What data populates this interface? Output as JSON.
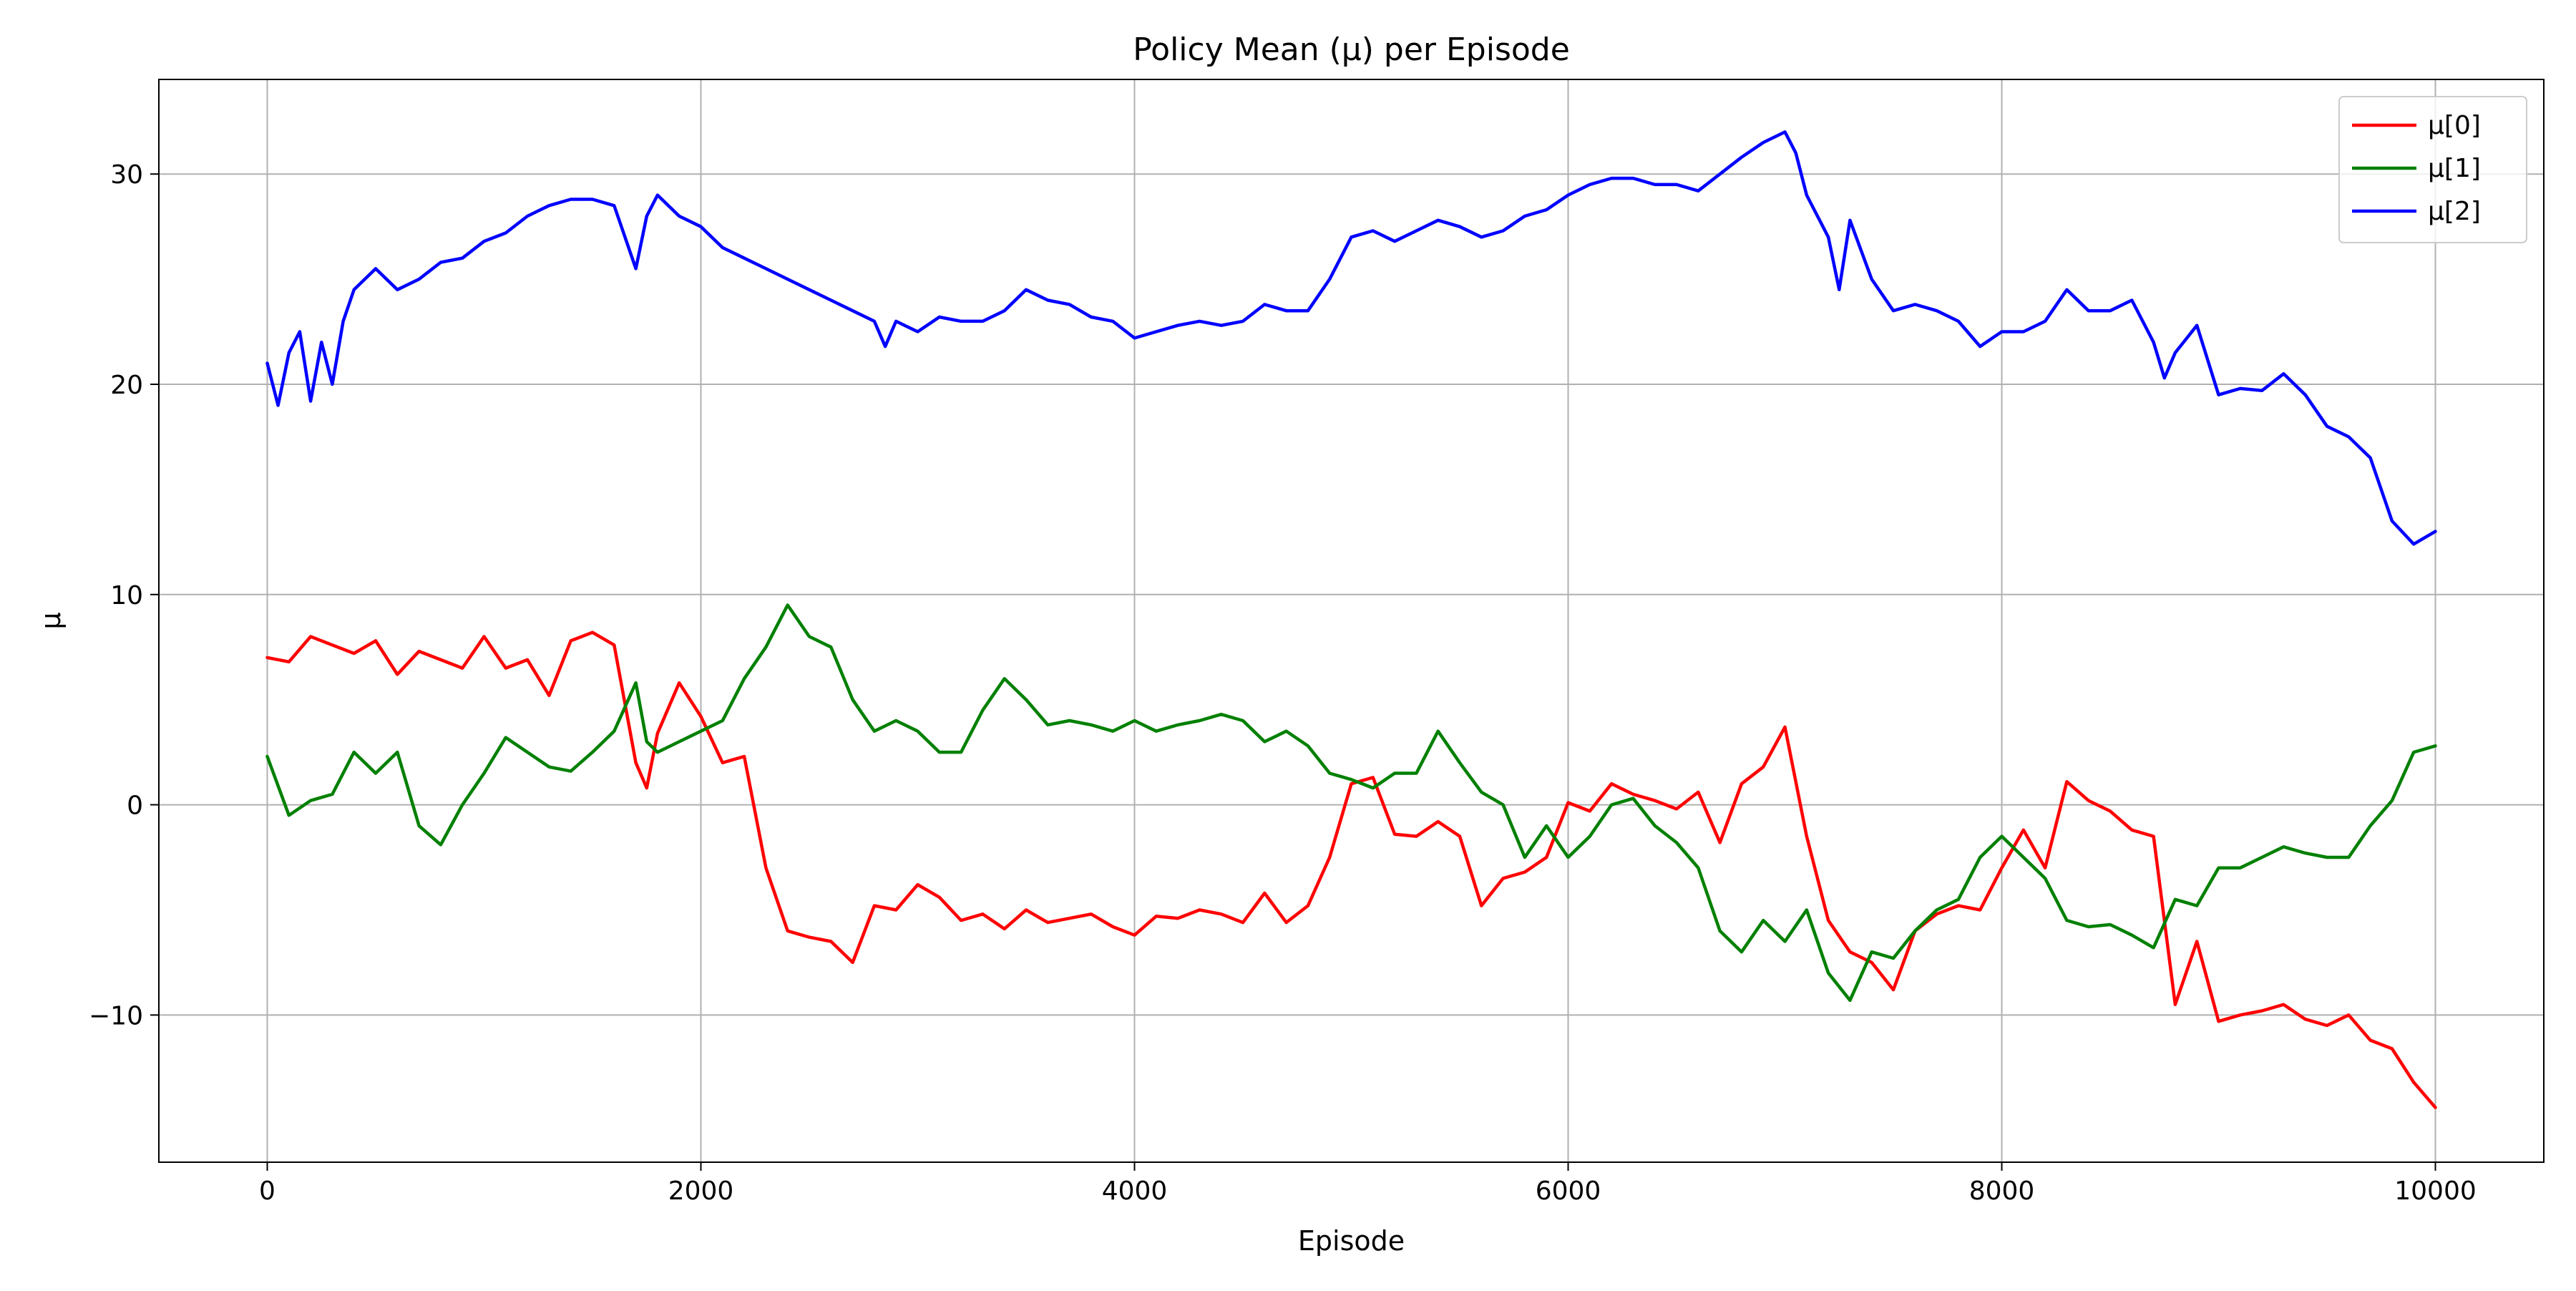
{
  "chart_data": {
    "type": "line",
    "title": "Policy Mean (μ) per Episode",
    "xlabel": "Episode",
    "ylabel": "μ",
    "xlim": [
      -500,
      10500
    ],
    "ylim": [
      -17,
      34.5
    ],
    "xticks": [
      0,
      2000,
      4000,
      6000,
      8000,
      10000
    ],
    "yticks": [
      -10,
      0,
      10,
      20,
      30
    ],
    "xtick_labels": [
      "0",
      "2000",
      "4000",
      "6000",
      "8000",
      "10000"
    ],
    "ytick_labels": [
      "−10",
      "0",
      "10",
      "20",
      "30"
    ],
    "grid": true,
    "legend_position": "top-right",
    "series": [
      {
        "name": "μ[0]",
        "color": "#ff0000",
        "x": [
          0,
          100,
          200,
          300,
          400,
          500,
          600,
          700,
          800,
          900,
          1000,
          1100,
          1200,
          1300,
          1400,
          1500,
          1600,
          1700,
          1750,
          1800,
          1900,
          2000,
          2100,
          2200,
          2300,
          2400,
          2500,
          2600,
          2700,
          2800,
          2900,
          3000,
          3100,
          3200,
          3300,
          3400,
          3500,
          3600,
          3700,
          3800,
          3900,
          4000,
          4100,
          4200,
          4300,
          4400,
          4500,
          4600,
          4700,
          4800,
          4900,
          5000,
          5100,
          5200,
          5300,
          5400,
          5500,
          5600,
          5700,
          5800,
          5900,
          6000,
          6100,
          6200,
          6300,
          6400,
          6500,
          6600,
          6700,
          6800,
          6900,
          7000,
          7100,
          7200,
          7300,
          7400,
          7500,
          7600,
          7700,
          7800,
          7900,
          8000,
          8100,
          8200,
          8300,
          8400,
          8500,
          8600,
          8700,
          8800,
          8900,
          9000,
          9100,
          9200,
          9300,
          9400,
          9500,
          9600,
          9700,
          9800,
          9900,
          10000
        ],
        "y": [
          7.0,
          6.8,
          8.0,
          7.6,
          7.2,
          7.8,
          6.2,
          7.3,
          6.9,
          6.5,
          8.0,
          6.5,
          6.9,
          5.2,
          7.8,
          8.2,
          7.6,
          2.0,
          0.8,
          3.4,
          5.8,
          4.2,
          2.0,
          2.3,
          -3.0,
          -6.0,
          -6.3,
          -6.5,
          -7.5,
          -4.8,
          -5.0,
          -3.8,
          -4.4,
          -5.5,
          -5.2,
          -5.9,
          -5.0,
          -5.6,
          -5.4,
          -5.2,
          -5.8,
          -6.2,
          -5.3,
          -5.4,
          -5.0,
          -5.2,
          -5.6,
          -4.2,
          -5.6,
          -4.8,
          -2.5,
          1.0,
          1.3,
          -1.4,
          -1.5,
          -0.8,
          -1.5,
          -4.8,
          -3.5,
          -3.2,
          -2.5,
          0.1,
          -0.3,
          1.0,
          0.5,
          0.2,
          -0.2,
          0.6,
          -1.8,
          1.0,
          1.8,
          3.7,
          -1.5,
          -5.5,
          -7.0,
          -7.5,
          -8.8,
          -6.0,
          -5.2,
          -4.8,
          -5.0,
          -3.0,
          -1.2,
          -3.0,
          1.1,
          0.2,
          -0.3,
          -1.2,
          -1.5,
          -9.5,
          -6.5,
          -10.3,
          -10.0,
          -9.8,
          -9.5,
          -10.2,
          -10.5,
          -10.0,
          -11.2,
          -11.6,
          -13.2,
          -14.4
        ]
      },
      {
        "name": "μ[1]",
        "color": "#008000",
        "x": [
          0,
          100,
          200,
          300,
          400,
          500,
          600,
          700,
          800,
          900,
          1000,
          1100,
          1200,
          1300,
          1400,
          1500,
          1600,
          1700,
          1750,
          1800,
          1900,
          2000,
          2100,
          2200,
          2300,
          2400,
          2500,
          2600,
          2700,
          2800,
          2900,
          3000,
          3100,
          3200,
          3300,
          3400,
          3500,
          3600,
          3700,
          3800,
          3900,
          4000,
          4100,
          4200,
          4300,
          4400,
          4500,
          4600,
          4700,
          4800,
          4900,
          5000,
          5100,
          5200,
          5300,
          5400,
          5500,
          5600,
          5700,
          5800,
          5900,
          6000,
          6100,
          6200,
          6300,
          6400,
          6500,
          6600,
          6700,
          6800,
          6900,
          7000,
          7100,
          7200,
          7300,
          7400,
          7500,
          7600,
          7700,
          7800,
          7900,
          8000,
          8100,
          8200,
          8300,
          8400,
          8500,
          8600,
          8700,
          8800,
          8900,
          9000,
          9100,
          9200,
          9300,
          9400,
          9500,
          9600,
          9700,
          9800,
          9900,
          10000
        ],
        "y": [
          2.3,
          -0.5,
          0.2,
          0.5,
          2.5,
          1.5,
          2.5,
          -1.0,
          -1.9,
          0.0,
          1.5,
          3.2,
          2.5,
          1.8,
          1.6,
          2.5,
          3.5,
          5.8,
          3.0,
          2.5,
          3.0,
          3.5,
          4.0,
          6.0,
          7.5,
          9.5,
          8.0,
          7.5,
          5.0,
          3.5,
          4.0,
          3.5,
          2.5,
          2.5,
          4.5,
          6.0,
          5.0,
          3.8,
          4.0,
          3.8,
          3.5,
          4.0,
          3.5,
          3.8,
          4.0,
          4.3,
          4.0,
          3.0,
          3.5,
          2.8,
          1.5,
          1.2,
          0.8,
          1.5,
          1.5,
          3.5,
          2.0,
          0.6,
          0.0,
          -2.5,
          -1.0,
          -2.5,
          -1.5,
          0.0,
          0.3,
          -1.0,
          -1.8,
          -3.0,
          -6.0,
          -7.0,
          -5.5,
          -6.5,
          -5.0,
          -8.0,
          -9.3,
          -7.0,
          -7.3,
          -6.0,
          -5.0,
          -4.5,
          -2.5,
          -1.5,
          -2.5,
          -3.5,
          -5.5,
          -5.8,
          -5.7,
          -6.2,
          -6.8,
          -4.5,
          -4.8,
          -3.0,
          -3.0,
          -2.5,
          -2.0,
          -2.3,
          -2.5,
          -2.5,
          -1.0,
          0.2,
          2.5,
          2.8
        ]
      },
      {
        "name": "μ[2]",
        "color": "#0000ff",
        "x": [
          0,
          50,
          100,
          150,
          200,
          250,
          300,
          350,
          400,
          500,
          600,
          700,
          800,
          900,
          1000,
          1100,
          1200,
          1300,
          1400,
          1500,
          1600,
          1700,
          1750,
          1800,
          1900,
          2000,
          2100,
          2200,
          2300,
          2400,
          2500,
          2600,
          2700,
          2800,
          2850,
          2900,
          3000,
          3100,
          3200,
          3300,
          3400,
          3500,
          3600,
          3700,
          3800,
          3900,
          4000,
          4100,
          4200,
          4300,
          4400,
          4500,
          4600,
          4700,
          4800,
          4900,
          5000,
          5100,
          5200,
          5300,
          5400,
          5500,
          5600,
          5700,
          5800,
          5900,
          6000,
          6100,
          6200,
          6300,
          6400,
          6500,
          6600,
          6700,
          6800,
          6900,
          7000,
          7050,
          7100,
          7200,
          7250,
          7300,
          7400,
          7500,
          7600,
          7700,
          7800,
          7900,
          8000,
          8100,
          8200,
          8300,
          8400,
          8500,
          8600,
          8700,
          8750,
          8800,
          8900,
          9000,
          9100,
          9200,
          9300,
          9400,
          9500,
          9600,
          9700,
          9800,
          9900,
          10000
        ],
        "y": [
          21.0,
          19.0,
          21.5,
          22.5,
          19.2,
          22.0,
          20.0,
          23.0,
          24.5,
          25.5,
          24.5,
          25.0,
          25.8,
          26.0,
          26.8,
          27.2,
          28.0,
          28.5,
          28.8,
          28.8,
          28.5,
          25.5,
          28.0,
          29.0,
          28.0,
          27.5,
          26.5,
          26.0,
          25.5,
          25.0,
          24.5,
          24.0,
          23.5,
          23.0,
          21.8,
          23.0,
          22.5,
          23.2,
          23.0,
          23.0,
          23.5,
          24.5,
          24.0,
          23.8,
          23.2,
          23.0,
          22.2,
          22.5,
          22.8,
          23.0,
          22.8,
          23.0,
          23.8,
          23.5,
          23.5,
          25.0,
          27.0,
          27.3,
          26.8,
          27.3,
          27.8,
          27.5,
          27.0,
          27.3,
          28.0,
          28.3,
          29.0,
          29.5,
          29.8,
          29.8,
          29.5,
          29.5,
          29.2,
          30.0,
          30.8,
          31.5,
          32.0,
          31.0,
          29.0,
          27.0,
          24.5,
          27.8,
          25.0,
          23.5,
          23.8,
          23.5,
          23.0,
          21.8,
          22.5,
          22.5,
          23.0,
          24.5,
          23.5,
          23.5,
          24.0,
          22.0,
          20.3,
          21.5,
          22.8,
          19.5,
          19.8,
          19.7,
          20.5,
          19.5,
          18.0,
          17.5,
          16.5,
          13.5,
          12.4,
          13.0
        ]
      }
    ]
  }
}
